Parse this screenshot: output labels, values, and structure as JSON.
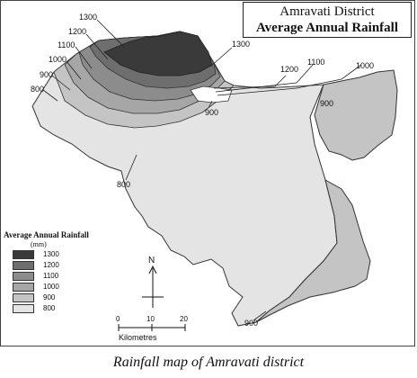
{
  "title": {
    "line1": "Amravati District",
    "line2": "Average Annual Rainfall"
  },
  "legend": {
    "title": "Average Annual Rainfall",
    "unit": "(mm)",
    "items": [
      {
        "label": "1300",
        "color": "#3a3a3a"
      },
      {
        "label": "1200",
        "color": "#6e6e6e"
      },
      {
        "label": "1100",
        "color": "#8c8c8c"
      },
      {
        "label": "1000",
        "color": "#a6a6a6"
      },
      {
        "label": "900",
        "color": "#c4c4c4"
      },
      {
        "label": "800",
        "color": "#e4e4e4"
      }
    ]
  },
  "contour_labels": {
    "c1300_left": "1300",
    "c1200_left": "1200",
    "c1100_left": "1100",
    "c1000_left": "1000",
    "c900_left": "900",
    "c800_left": "800",
    "c1300_right": "1300",
    "c1200_right": "1200",
    "c1100_right": "1100",
    "c1000_right": "1000",
    "c900_mid": "900",
    "c900_east": "900",
    "c800_south": "800",
    "c900_bottom": "900"
  },
  "compass": {
    "north": "N"
  },
  "scale_bar": {
    "ticks": [
      "0",
      "10",
      "20"
    ],
    "label": "Kilometres"
  },
  "caption": "Rainfall map of Amravati district"
}
